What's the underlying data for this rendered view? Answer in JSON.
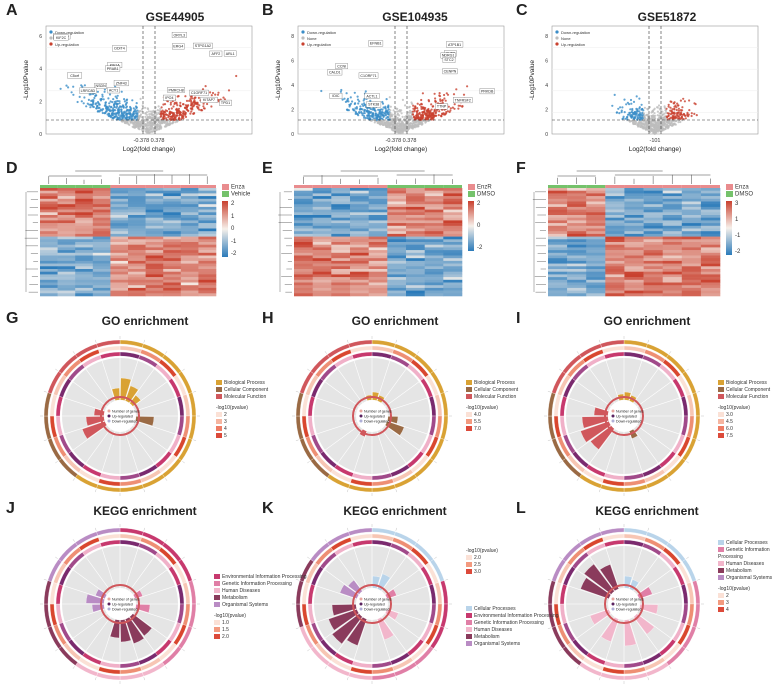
{
  "colors": {
    "down": "#3a8dc8",
    "none": "#bdbdbd",
    "up": "#c9412f",
    "heat_high": "#c9412f",
    "heat_low": "#2b7bba",
    "go_bp": "#d9a234",
    "go_cc": "#9a6a44",
    "go_mf": "#d0575c"
  },
  "panels": {
    "A": {
      "letter": "A",
      "title": "GSE44905",
      "xlabel": "Log2(fold change)",
      "ylabel": "-Log10Pvalue",
      "threshold_label": "-0.378 0.378",
      "legend": [
        "Down-regulation",
        "None",
        "Up-regulation"
      ],
      "yticks": [
        "0",
        "2",
        "4",
        "6"
      ],
      "gene_labels": [
        "STPG1A2",
        "NSDN",
        "TPD1",
        "SNAPC5",
        "PMRCH8",
        "KIF1A",
        "C1ORF71",
        "PRAB1",
        "ORYL3",
        "ACY1",
        "ERG4",
        "KIF2C",
        "AFF2",
        "DDIT4",
        "IPO4",
        "ZNF43",
        "KITAP7",
        "LRRC8D",
        "ARL1",
        "C5orf"
      ]
    },
    "B": {
      "letter": "B",
      "title": "GSE104935",
      "xlabel": "Log2(fold change)",
      "ylabel": "-Log10Pvalue",
      "threshold_label": "-0.378 0.378",
      "legend": [
        "Down-regulation",
        "None",
        "Up-regulation"
      ],
      "yticks": [
        "0",
        "2",
        "4",
        "6",
        "8"
      ],
      "gene_labels": [
        "CENPN",
        "C1ORF71",
        "TNFRSF2",
        "IDIC",
        "ATP1B1",
        "CCNI",
        "KHF2",
        "STK38",
        "TTNP",
        "EFNB1",
        "NDRG1",
        "ACTL1",
        "PRKDB",
        "CALD1",
        "STC2"
      ]
    },
    "C": {
      "letter": "C",
      "title": "GSE51872",
      "xlabel": "Log2(fold change)",
      "ylabel": "-Log10Pvalue",
      "threshold_label": "-101",
      "legend": [
        "Down-regulation",
        "None",
        "Up-regulation"
      ],
      "yticks": [
        "0",
        "2",
        "4",
        "6",
        "8"
      ]
    },
    "D": {
      "letter": "D",
      "legend": [
        "Enza",
        "Vehicle"
      ],
      "scale": [
        "2",
        "1",
        "0",
        "-1",
        "-2"
      ],
      "group_colors": [
        "#e98c8e",
        "#75c26b"
      ]
    },
    "E": {
      "letter": "E",
      "legend": [
        "EnzR",
        "DMSO"
      ],
      "scale": [
        "2",
        "0",
        "-2"
      ],
      "group_colors": [
        "#e98c8e",
        "#75c26b"
      ]
    },
    "F": {
      "letter": "F",
      "legend": [
        "Enza",
        "DMSO"
      ],
      "scale": [
        "3",
        "1",
        "-1",
        "-2"
      ],
      "group_colors": [
        "#e98c8e",
        "#75c26b"
      ]
    },
    "G": {
      "letter": "G",
      "title": "GO enrichment",
      "legend": [
        "Biological Process",
        "Cellular Component",
        "Molecular Function"
      ],
      "scale_title": "-log10(pvalue)",
      "scale": [
        "2",
        "3",
        "4",
        "5"
      ],
      "center": [
        "Number of genes",
        "Up-regulated",
        "Down-regulated"
      ]
    },
    "H": {
      "letter": "H",
      "title": "GO enrichment",
      "legend": [
        "Biological Process",
        "Cellular Component",
        "Molecular Function"
      ],
      "scale_title": "-log10(pvalue)",
      "scale": [
        "4.0",
        "5.5",
        "7.0"
      ],
      "center": [
        "Number of genes",
        "Up-regulated",
        "Down-regulated"
      ]
    },
    "I": {
      "letter": "I",
      "title": "GO enrichment",
      "legend": [
        "Biological Process",
        "Cellular Component",
        "Molecular Function"
      ],
      "scale_title": "-log10(pvalue)",
      "scale": [
        "3.0",
        "4.5",
        "6.0",
        "7.5"
      ],
      "center": [
        "Number of genes",
        "Up-regulated",
        "Down-regulated"
      ]
    },
    "J": {
      "letter": "J",
      "title": "KEGG enrichment",
      "legend": [
        "Environmental Information Processing",
        "Genetic Information Processing",
        "Human Diseases",
        "Metabolism",
        "Organismal Systems"
      ],
      "scale_title": "-log10(pvalue)",
      "scale": [
        "1.0",
        "1.5",
        "2.0"
      ],
      "center": [
        "Number of genes",
        "Up-regulated",
        "Down-regulated"
      ]
    },
    "K": {
      "letter": "K",
      "title": "KEGG enrichment",
      "legend": [
        "Cellular Processes",
        "Environmental Information Processing",
        "Genetic Information Processing",
        "Human Diseases",
        "Metabolism",
        "Organismal Systems"
      ],
      "scale_title": "-log10(pvalue)",
      "scale": [
        "2.0",
        "2.5",
        "3.0"
      ],
      "center": [
        "Number of genes",
        "Up-regulated",
        "Down-regulated"
      ]
    },
    "L": {
      "letter": "L",
      "title": "KEGG enrichment",
      "legend": [
        "Cellular Processes",
        "Genetic Information Processing",
        "Human Diseases",
        "Metabolism",
        "Organismal Systems"
      ],
      "scale_title": "-log10(pvalue)",
      "scale": [
        "2",
        "3",
        "4"
      ],
      "center": [
        "Number of genes",
        "Up-regulated",
        "Down-regulated"
      ]
    }
  }
}
